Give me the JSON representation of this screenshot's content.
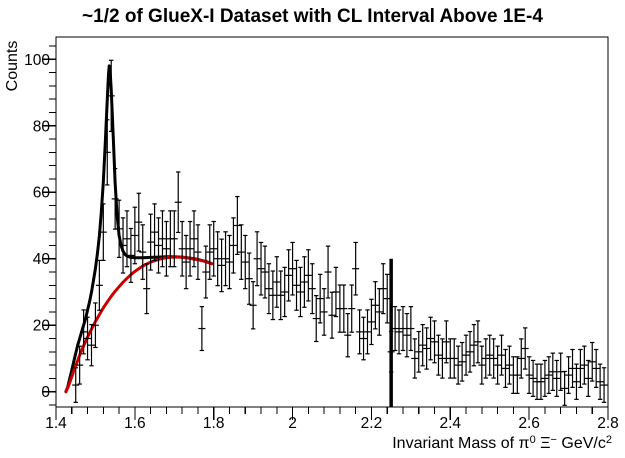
{
  "figure": {
    "title": "~1/2 of GlueX-I Dataset with CL Interval Above 1E-4"
  },
  "chart_data": {
    "type": "scatter",
    "subtype": "histogram-with-error-bars-plus-fit-curves",
    "title": "~1/2 of GlueX-I Dataset with CL Interval Above 1E-4",
    "ylabel": "Counts",
    "xlabel_plain": "Invariant Mass of π0 Ξ− GeV/c2",
    "xlabel_parts": [
      {
        "t": "Invariant Mass of "
      },
      {
        "t": "π"
      },
      {
        "s": "0"
      },
      {
        "t": " Ξ"
      },
      {
        "s": "−"
      },
      {
        "t": " GeV/c"
      },
      {
        "s": "2"
      }
    ],
    "xlim": [
      1.4,
      2.8
    ],
    "ylim": [
      -4.6,
      106.7
    ],
    "grid": false,
    "legend": "none",
    "x_axis": {
      "major_ticks": [
        1.4,
        1.6,
        1.8,
        2.0,
        2.2,
        2.4,
        2.6,
        2.8
      ],
      "labels": [
        "1.4",
        "1.6",
        "1.8",
        "2",
        "2.2",
        "2.4",
        "2.6",
        "2.8"
      ],
      "minor_step": 0.04
    },
    "y_axis": {
      "major_ticks": [
        0,
        20,
        40,
        60,
        80,
        100
      ],
      "labels": [
        "0",
        "20",
        "40",
        "60",
        "80",
        "100"
      ],
      "minor_step": 4
    },
    "colors": {
      "data_points": "#000000",
      "total_fit": "#000000",
      "background_fit": "#cc0000",
      "cl_boundary_line": "#000000"
    },
    "points": {
      "mass_start": 1.45,
      "mass_step": 0.01,
      "counts": [
        2,
        8,
        18,
        16,
        14,
        20,
        32,
        48,
        72,
        89,
        58,
        49,
        44,
        46,
        41,
        47,
        51,
        42,
        31,
        45,
        48,
        44,
        46,
        43,
        46,
        46,
        57,
        43,
        39,
        43,
        46,
        42,
        19,
        36,
        42,
        43,
        40,
        38,
        40,
        39,
        44,
        50,
        42,
        39,
        34,
        26,
        40,
        37,
        36,
        31,
        29,
        33,
        29,
        30,
        35,
        37,
        32,
        30,
        33,
        35,
        31,
        22,
        28,
        24,
        36,
        23,
        30,
        25,
        25,
        17,
        25,
        37,
        18,
        16,
        18,
        21,
        26,
        24,
        31,
        28,
        12,
        19,
        18,
        19,
        17,
        19,
        10,
        12,
        14,
        13,
        16,
        15,
        11,
        10,
        15,
        10,
        10,
        8,
        9,
        11,
        12,
        14,
        15,
        8,
        10,
        11,
        10,
        8,
        11,
        7,
        8,
        5,
        5,
        10,
        13,
        5,
        4,
        3,
        3,
        4,
        5,
        6,
        4,
        6,
        1,
        5,
        7,
        3,
        7,
        8,
        4,
        9,
        7,
        3,
        2
      ],
      "errors": [
        5.2,
        5.7,
        6.6,
        6.4,
        6.2,
        6.7,
        7.5,
        8.5,
        9.8,
        10.7,
        9.1,
        8.6,
        8.3,
        8.4,
        8.1,
        8.5,
        8.7,
        8.2,
        7.5,
        8.4,
        8.5,
        8.3,
        8.4,
        8.2,
        8.4,
        8.4,
        9.1,
        8.2,
        8,
        8.2,
        8.4,
        8.2,
        6.6,
        7.8,
        8.2,
        8.2,
        8.1,
        7.9,
        8.1,
        8,
        8.3,
        8.7,
        8.2,
        8,
        7.7,
        7.1,
        8.1,
        7.9,
        7.8,
        7.5,
        7.3,
        7.6,
        7.3,
        7.4,
        7.7,
        7.9,
        7.5,
        7.4,
        7.6,
        7.7,
        7.5,
        6.9,
        7.3,
        7,
        7.8,
        6.9,
        7.4,
        7.1,
        7.1,
        6.5,
        7.1,
        7.9,
        6.6,
        6.4,
        6.6,
        6.8,
        7.1,
        7,
        7.5,
        7.3,
        6.1,
        6.6,
        6.6,
        6.6,
        6.5,
        6.6,
        5.9,
        6.1,
        6.2,
        6.2,
        6.4,
        6.3,
        6,
        5.9,
        6.3,
        5.9,
        5.9,
        5.7,
        5.8,
        6,
        6.1,
        6.2,
        6.3,
        5.7,
        5.9,
        6,
        5.9,
        5.7,
        6,
        5.7,
        5.7,
        5.5,
        5.5,
        5.9,
        6.2,
        5.5,
        5.4,
        5.3,
        5.3,
        5.4,
        5.5,
        5.6,
        5.4,
        5.6,
        5.1,
        5.5,
        5.7,
        5.3,
        5.7,
        5.7,
        5.4,
        5.8,
        5.7,
        5.3,
        5.2
      ]
    },
    "curves": [
      {
        "name": "total_fit",
        "color": "#000000",
        "width": 3,
        "points": [
          [
            1.425,
            0
          ],
          [
            1.43,
            1.5
          ],
          [
            1.435,
            4
          ],
          [
            1.44,
            6.5
          ],
          [
            1.445,
            9
          ],
          [
            1.45,
            11.5
          ],
          [
            1.455,
            14
          ],
          [
            1.46,
            16
          ],
          [
            1.465,
            18
          ],
          [
            1.47,
            20
          ],
          [
            1.475,
            22
          ],
          [
            1.48,
            24.5
          ],
          [
            1.485,
            27
          ],
          [
            1.49,
            30
          ],
          [
            1.495,
            33.5
          ],
          [
            1.5,
            37
          ],
          [
            1.505,
            41.5
          ],
          [
            1.51,
            47
          ],
          [
            1.515,
            54
          ],
          [
            1.52,
            63
          ],
          [
            1.525,
            75
          ],
          [
            1.53,
            88
          ],
          [
            1.533,
            95
          ],
          [
            1.535,
            98
          ],
          [
            1.537,
            97
          ],
          [
            1.54,
            91
          ],
          [
            1.545,
            77
          ],
          [
            1.55,
            63
          ],
          [
            1.555,
            53
          ],
          [
            1.56,
            47
          ],
          [
            1.565,
            44
          ],
          [
            1.57,
            42.3
          ],
          [
            1.575,
            41.3
          ],
          [
            1.58,
            40.8
          ],
          [
            1.59,
            40.4
          ],
          [
            1.6,
            40.3
          ],
          [
            1.62,
            40.3
          ],
          [
            1.64,
            40.4
          ],
          [
            1.66,
            40.5
          ],
          [
            1.68,
            40.6
          ],
          [
            1.7,
            40.6
          ],
          [
            1.72,
            40.5
          ],
          [
            1.74,
            40.2
          ],
          [
            1.76,
            39.8
          ],
          [
            1.78,
            39.2
          ],
          [
            1.795,
            38.5
          ]
        ]
      },
      {
        "name": "background_fit",
        "color": "#cc0000",
        "width": 3,
        "points": [
          [
            1.425,
            0
          ],
          [
            1.43,
            1.2
          ],
          [
            1.435,
            2.8
          ],
          [
            1.44,
            4.5
          ],
          [
            1.445,
            6.2
          ],
          [
            1.45,
            7.8
          ],
          [
            1.455,
            9.4
          ],
          [
            1.46,
            11
          ],
          [
            1.465,
            12.4
          ],
          [
            1.47,
            13.8
          ],
          [
            1.475,
            15.1
          ],
          [
            1.48,
            16.4
          ],
          [
            1.485,
            17.6
          ],
          [
            1.49,
            18.8
          ],
          [
            1.495,
            20
          ],
          [
            1.5,
            21.1
          ],
          [
            1.51,
            23.2
          ],
          [
            1.52,
            25.2
          ],
          [
            1.53,
            27
          ],
          [
            1.54,
            28.7
          ],
          [
            1.55,
            30.2
          ],
          [
            1.56,
            31.6
          ],
          [
            1.57,
            32.9
          ],
          [
            1.58,
            34.1
          ],
          [
            1.59,
            35.2
          ],
          [
            1.6,
            36.2
          ],
          [
            1.61,
            37
          ],
          [
            1.62,
            37.8
          ],
          [
            1.63,
            38.4
          ],
          [
            1.64,
            39
          ],
          [
            1.65,
            39.4
          ],
          [
            1.66,
            39.8
          ],
          [
            1.67,
            40.1
          ],
          [
            1.68,
            40.3
          ],
          [
            1.69,
            40.45
          ],
          [
            1.7,
            40.5
          ],
          [
            1.71,
            40.5
          ],
          [
            1.72,
            40.45
          ],
          [
            1.73,
            40.3
          ],
          [
            1.74,
            40.1
          ],
          [
            1.75,
            39.9
          ],
          [
            1.76,
            39.7
          ],
          [
            1.77,
            39.4
          ],
          [
            1.78,
            39.1
          ],
          [
            1.79,
            38.7
          ],
          [
            1.795,
            38.5
          ]
        ]
      }
    ],
    "vline": {
      "mass": 2.25,
      "count_top": 40,
      "count_bottom": -4.6,
      "width": 3.5
    }
  }
}
